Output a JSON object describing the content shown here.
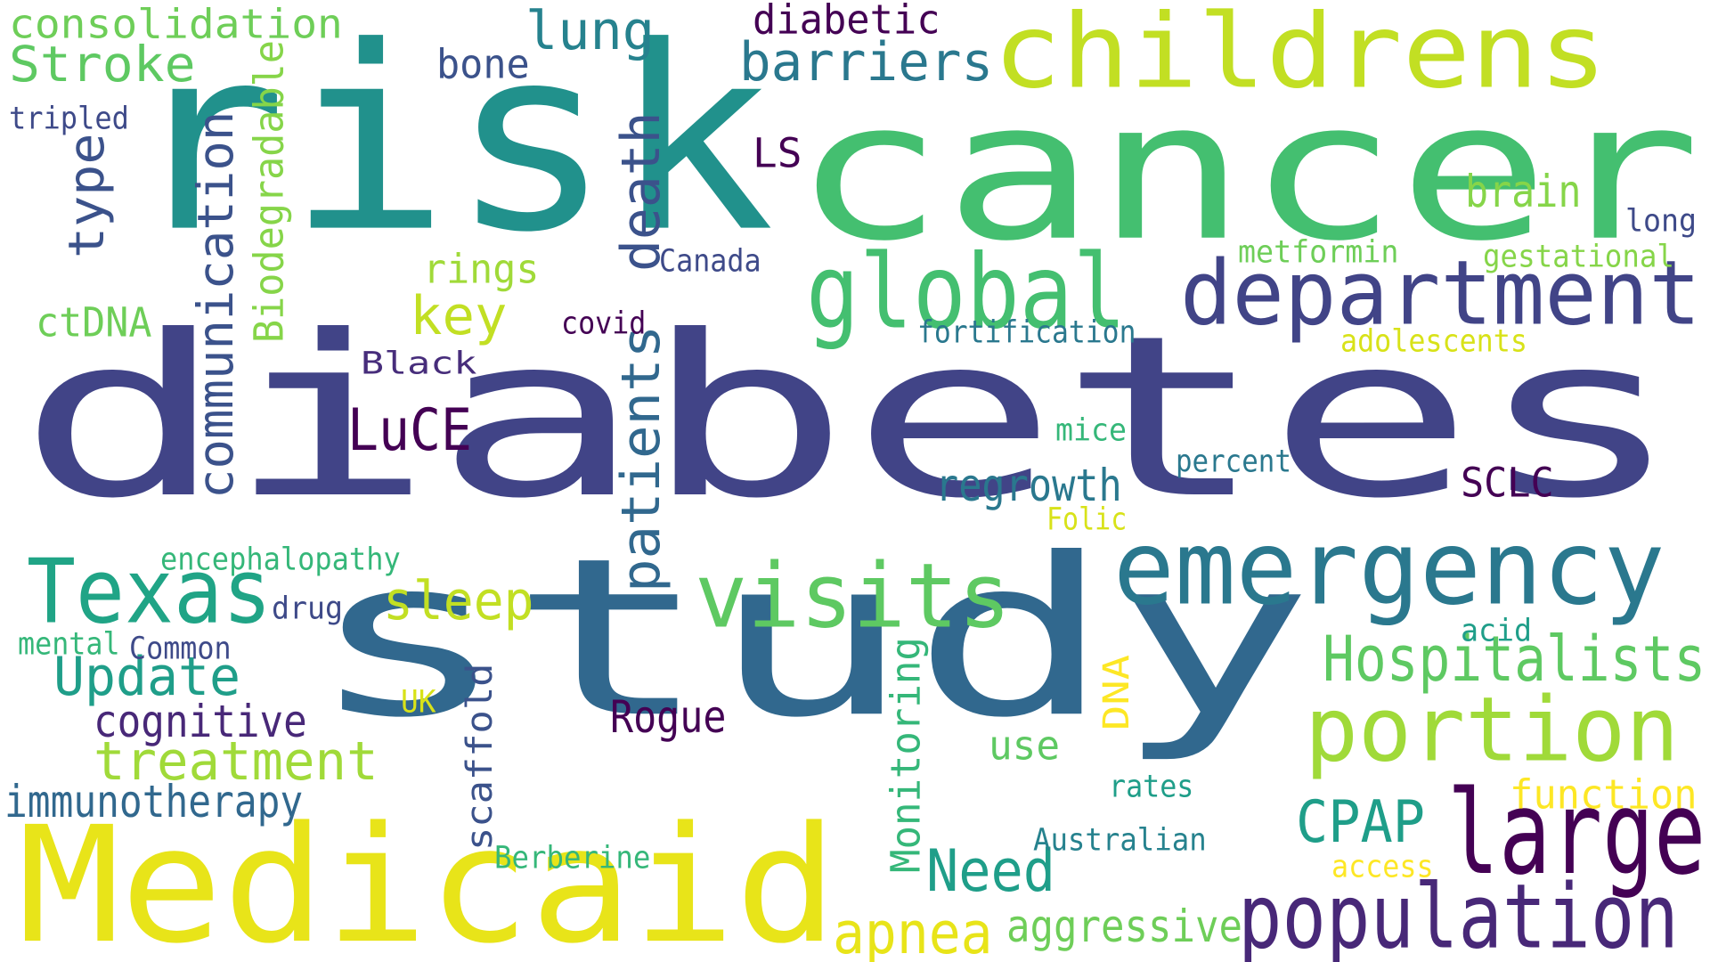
{
  "words": [
    {
      "text": "diabetes",
      "color": "#414487"
    },
    {
      "text": "study",
      "color": "#31688e"
    },
    {
      "text": "risk",
      "color": "#21918c"
    },
    {
      "text": "cancer",
      "color": "#44bf70"
    },
    {
      "text": "Medicaid",
      "color": "#e8e419"
    },
    {
      "text": "childrens",
      "color": "#c2df23"
    },
    {
      "text": "department",
      "color": "#414487"
    },
    {
      "text": "emergency",
      "color": "#2a788e"
    },
    {
      "text": "visits",
      "color": "#5ec962"
    },
    {
      "text": "global",
      "color": "#44bf70"
    },
    {
      "text": "large",
      "color": "#440154"
    },
    {
      "text": "population",
      "color": "#482878"
    },
    {
      "text": "portion",
      "color": "#a0da39"
    },
    {
      "text": "Texas",
      "color": "#20a486"
    },
    {
      "text": "Hospitalists",
      "color": "#5ec962"
    },
    {
      "text": "death",
      "color": "#3b528b"
    },
    {
      "text": "patients",
      "color": "#31688e"
    },
    {
      "text": "communication",
      "color": "#3b528b"
    },
    {
      "text": "barriers",
      "color": "#2a788e"
    },
    {
      "text": "lung",
      "color": "#26828e"
    },
    {
      "text": "Stroke",
      "color": "#5ec962"
    },
    {
      "text": "consolidation",
      "color": "#6ece58"
    },
    {
      "text": "treatment",
      "color": "#a0da39"
    },
    {
      "text": "Update",
      "color": "#1f9e89"
    },
    {
      "text": "cognitive",
      "color": "#482878"
    },
    {
      "text": "immunotherapy",
      "color": "#31688e"
    },
    {
      "text": "Need",
      "color": "#1f9e89"
    },
    {
      "text": "apnea",
      "color": "#e8e419"
    },
    {
      "text": "sleep",
      "color": "#c2df23"
    },
    {
      "text": "CPAP",
      "color": "#1f9e89"
    },
    {
      "text": "aggressive",
      "color": "#6ece58"
    },
    {
      "text": "LuCE",
      "color": "#440154"
    },
    {
      "text": "type",
      "color": "#3b528b"
    },
    {
      "text": "key",
      "color": "#c2df23"
    },
    {
      "text": "regrowth",
      "color": "#2a788e"
    },
    {
      "text": "Biodegradable",
      "color": "#86d549"
    },
    {
      "text": "Monitoring",
      "color": "#35b779"
    },
    {
      "text": "scaffold",
      "color": "#3b528b"
    },
    {
      "text": "Rogue",
      "color": "#440154"
    },
    {
      "text": "brain",
      "color": "#86d549"
    },
    {
      "text": "function",
      "color": "#fde725"
    },
    {
      "text": "diabetic",
      "color": "#440154"
    },
    {
      "text": "ctDNA",
      "color": "#6ece58"
    },
    {
      "text": "SCLC",
      "color": "#440154"
    },
    {
      "text": "rings",
      "color": "#a0da39"
    },
    {
      "text": "use",
      "color": "#5ec962"
    },
    {
      "text": "bone",
      "color": "#3b528b"
    },
    {
      "text": "LS",
      "color": "#440154"
    },
    {
      "text": "DNA",
      "color": "#fde725"
    },
    {
      "text": "encephalopathy",
      "color": "#35b779"
    },
    {
      "text": "fortification",
      "color": "#2a788e"
    },
    {
      "text": "Australian",
      "color": "#26828e"
    },
    {
      "text": "metformin",
      "color": "#6ece58"
    },
    {
      "text": "gestational",
      "color": "#86d549"
    },
    {
      "text": "adolescents",
      "color": "#d8e219"
    },
    {
      "text": "percent",
      "color": "#2a788e"
    },
    {
      "text": "Berberine",
      "color": "#35b779"
    },
    {
      "text": "Black",
      "color": "#472d7b"
    },
    {
      "text": "covid",
      "color": "#440154"
    },
    {
      "text": "Canada",
      "color": "#3e4a89"
    },
    {
      "text": "mental",
      "color": "#35b779"
    },
    {
      "text": "Common",
      "color": "#3e4a89"
    },
    {
      "text": "tripled",
      "color": "#3e4a89"
    },
    {
      "text": "mice",
      "color": "#35b779"
    },
    {
      "text": "Folic",
      "color": "#d8e219"
    },
    {
      "text": "drug",
      "color": "#3e4a89"
    },
    {
      "text": "rates",
      "color": "#1f9e89"
    },
    {
      "text": "acid",
      "color": "#1f9e89"
    },
    {
      "text": "long",
      "color": "#3e4a89"
    },
    {
      "text": "UK",
      "color": "#d8e219"
    },
    {
      "text": "access",
      "color": "#fde725"
    }
  ]
}
